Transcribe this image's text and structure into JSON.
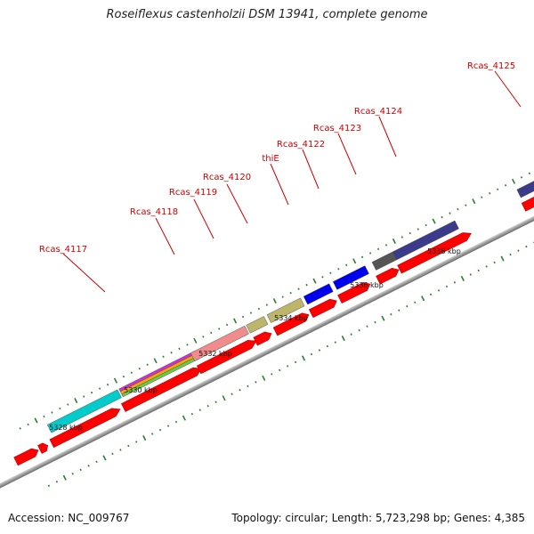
{
  "title": "Roseiflexus castenholzii DSM 13941, complete genome",
  "footer": {
    "accession": "Accession: NC_009767",
    "info": "Topology: circular; Length: 5,723,298 bp; Genes: 4,385"
  },
  "scale_labels": [
    "5328 kbp",
    "5330 kbp",
    "5332 kbp",
    "5334 kbp",
    "5336 kbp",
    "5338 kbp"
  ],
  "gene_labels": [
    "Rcas_4117",
    "Rcas_4118",
    "Rcas_4119",
    "Rcas_4120",
    "thiE",
    "Rcas_4122",
    "Rcas_4123",
    "Rcas_4124",
    "Rcas_4125"
  ],
  "colors": {
    "cds": "#ff0000",
    "backbone": "#8c8c8c",
    "tick": "#2e7d32",
    "label": "#cc0000"
  }
}
